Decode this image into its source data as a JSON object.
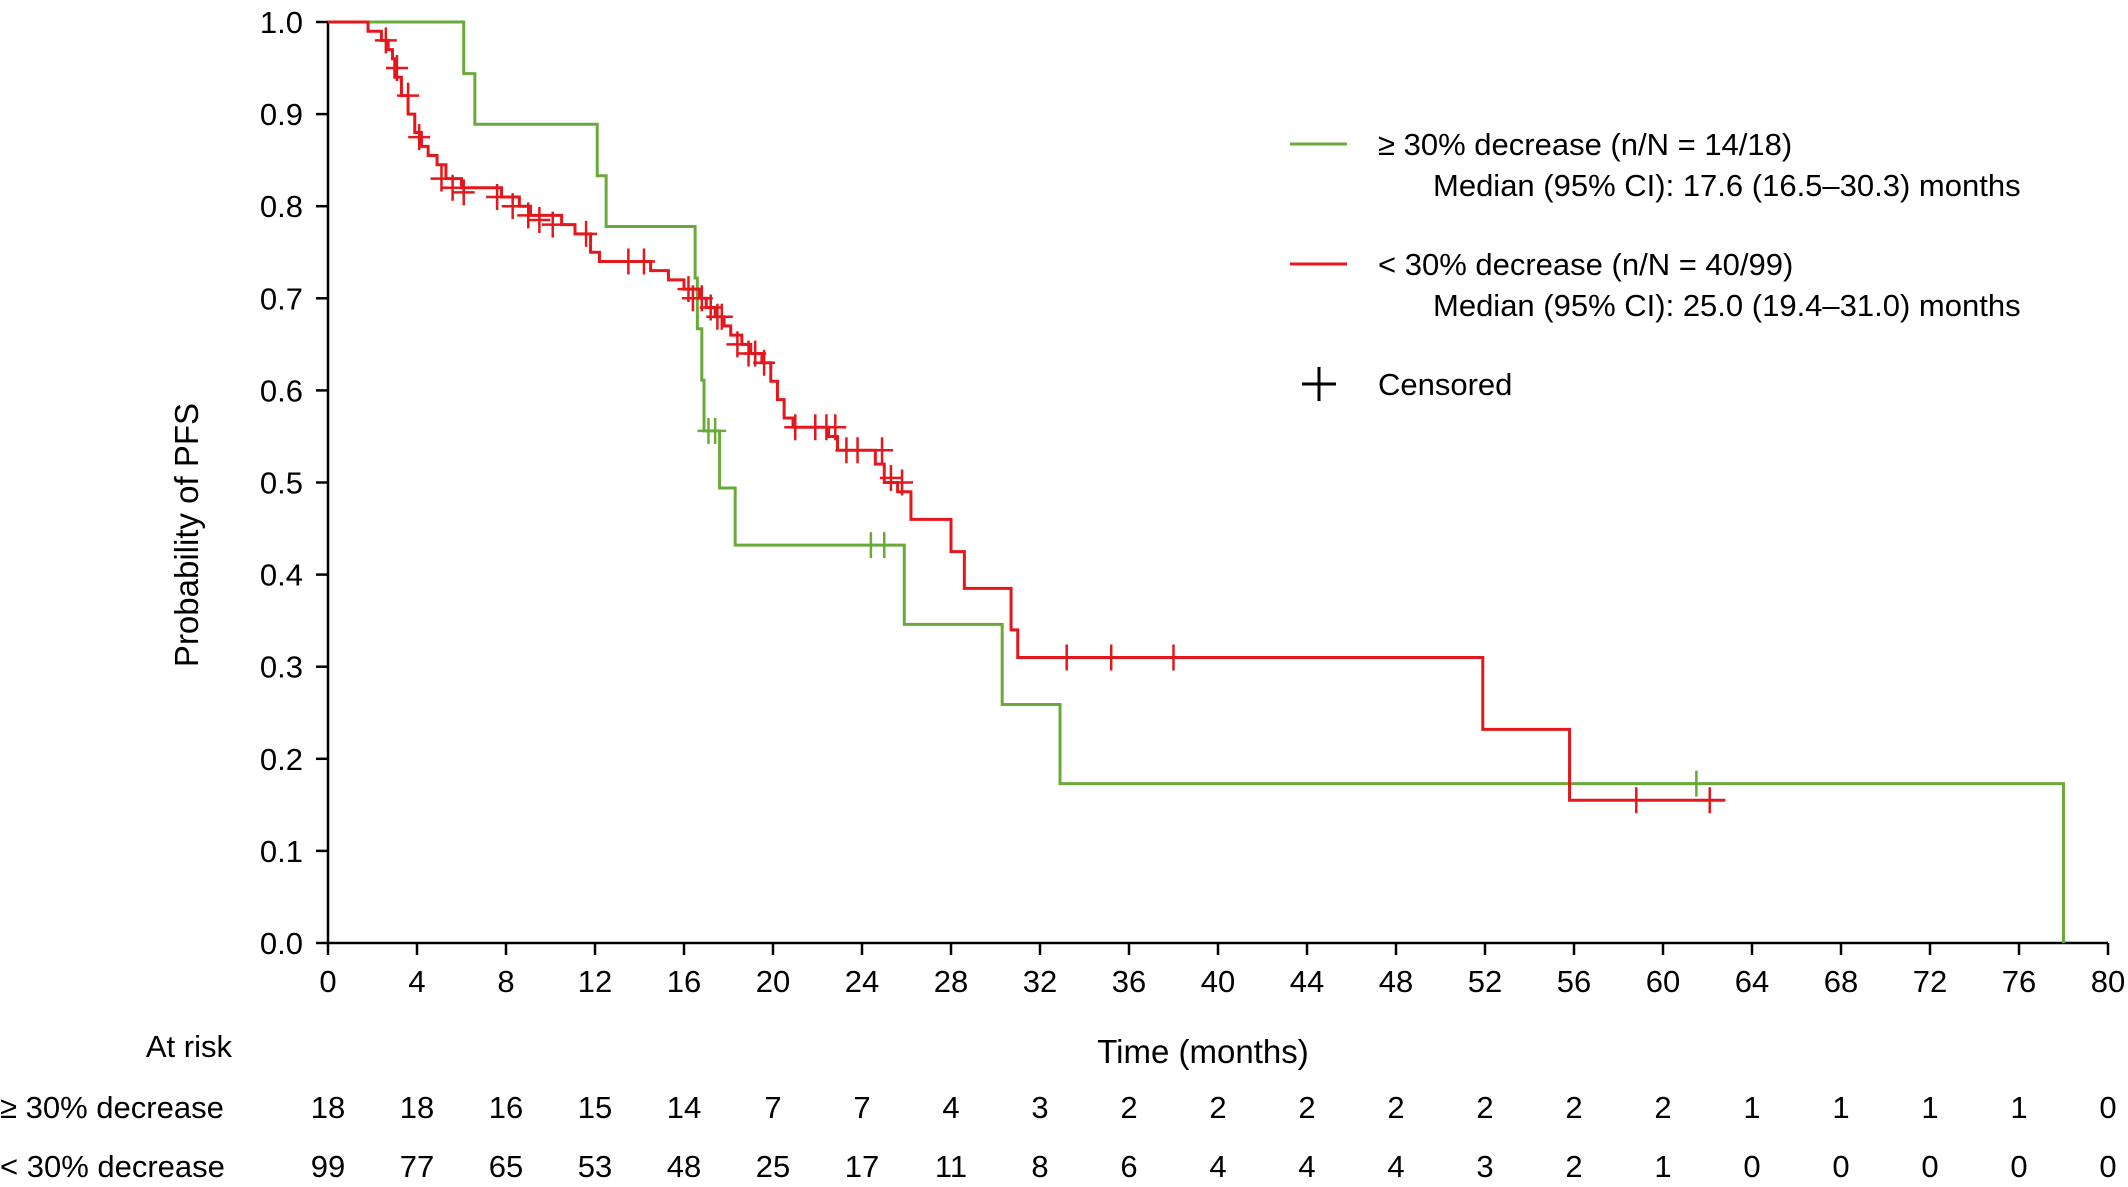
{
  "chart_data": {
    "type": "line",
    "xlabel": "Time (months)",
    "ylabel": "Probability of PFS",
    "xlim": [
      0,
      80
    ],
    "ylim": [
      0,
      1.0
    ],
    "x_ticks": [
      0,
      4,
      8,
      12,
      16,
      20,
      24,
      28,
      32,
      36,
      40,
      44,
      48,
      52,
      56,
      60,
      64,
      68,
      72,
      76,
      80
    ],
    "y_ticks": [
      "0.0",
      "0.1",
      "0.2",
      "0.3",
      "0.4",
      "0.5",
      "0.6",
      "0.7",
      "0.8",
      "0.9",
      "1.0"
    ],
    "grid": false,
    "legend_position": "top-right",
    "series": [
      {
        "name": "≥ 30% decrease (n/N = 14/18)",
        "median_text": "Median (95% CI): 17.6 (16.5–30.3) months",
        "color": "#6aaa3a",
        "steps": [
          [
            0,
            1.0
          ],
          [
            6.1,
            0.944
          ],
          [
            6.6,
            0.889
          ],
          [
            12.1,
            0.833
          ],
          [
            12.5,
            0.778
          ],
          [
            16.5,
            0.722
          ],
          [
            16.6,
            0.667
          ],
          [
            16.8,
            0.611
          ],
          [
            16.9,
            0.556
          ],
          [
            17.6,
            0.494
          ],
          [
            18.3,
            0.432
          ],
          [
            25.9,
            0.346
          ],
          [
            30.3,
            0.259
          ],
          [
            32.9,
            0.173
          ],
          [
            78.0,
            0.0
          ]
        ],
        "end_x": 78.0,
        "censored": [
          [
            17.1,
            0.556
          ],
          [
            17.4,
            0.556
          ],
          [
            24.4,
            0.432
          ],
          [
            25.0,
            0.432
          ],
          [
            61.5,
            0.173
          ]
        ]
      },
      {
        "name": "< 30% decrease (n/N = 40/99)",
        "median_text": "Median (95% CI): 25.0 (19.4–31.0) months",
        "color": "#e3171c",
        "steps": [
          [
            0,
            1.0
          ],
          [
            1.8,
            0.99
          ],
          [
            2.4,
            0.98
          ],
          [
            2.7,
            0.97
          ],
          [
            2.9,
            0.96
          ],
          [
            3.0,
            0.94
          ],
          [
            3.3,
            0.92
          ],
          [
            3.6,
            0.9
          ],
          [
            3.9,
            0.88
          ],
          [
            4.2,
            0.865
          ],
          [
            4.5,
            0.855
          ],
          [
            4.9,
            0.845
          ],
          [
            5.3,
            0.83
          ],
          [
            6.0,
            0.82
          ],
          [
            7.8,
            0.81
          ],
          [
            8.6,
            0.8
          ],
          [
            9.1,
            0.79
          ],
          [
            10.5,
            0.78
          ],
          [
            11.1,
            0.77
          ],
          [
            11.8,
            0.75
          ],
          [
            12.2,
            0.74
          ],
          [
            14.5,
            0.73
          ],
          [
            15.3,
            0.72
          ],
          [
            16.0,
            0.71
          ],
          [
            16.7,
            0.7
          ],
          [
            17.0,
            0.69
          ],
          [
            17.4,
            0.68
          ],
          [
            17.8,
            0.67
          ],
          [
            18.1,
            0.66
          ],
          [
            18.6,
            0.65
          ],
          [
            19.0,
            0.64
          ],
          [
            19.5,
            0.63
          ],
          [
            19.9,
            0.61
          ],
          [
            20.2,
            0.59
          ],
          [
            20.5,
            0.57
          ],
          [
            20.9,
            0.56
          ],
          [
            22.5,
            0.55
          ],
          [
            22.9,
            0.535
          ],
          [
            24.6,
            0.52
          ],
          [
            25.0,
            0.5
          ],
          [
            25.6,
            0.49
          ],
          [
            26.2,
            0.46
          ],
          [
            28.0,
            0.425
          ],
          [
            28.6,
            0.385
          ],
          [
            30.7,
            0.34
          ],
          [
            31.0,
            0.31
          ],
          [
            51.9,
            0.232
          ],
          [
            55.8,
            0.155
          ]
        ],
        "end_x": 62.8,
        "censored": [
          [
            2.6,
            0.98
          ],
          [
            3.1,
            0.95
          ],
          [
            3.6,
            0.92
          ],
          [
            4.1,
            0.875
          ],
          [
            5.1,
            0.83
          ],
          [
            5.6,
            0.82
          ],
          [
            6.1,
            0.815
          ],
          [
            7.6,
            0.81
          ],
          [
            8.3,
            0.8
          ],
          [
            9.0,
            0.79
          ],
          [
            9.5,
            0.785
          ],
          [
            10.1,
            0.78
          ],
          [
            11.6,
            0.77
          ],
          [
            13.5,
            0.74
          ],
          [
            14.2,
            0.74
          ],
          [
            16.2,
            0.71
          ],
          [
            16.4,
            0.7
          ],
          [
            16.8,
            0.7
          ],
          [
            17.2,
            0.69
          ],
          [
            17.5,
            0.68
          ],
          [
            17.7,
            0.68
          ],
          [
            18.4,
            0.65
          ],
          [
            18.9,
            0.64
          ],
          [
            19.2,
            0.64
          ],
          [
            19.6,
            0.63
          ],
          [
            21.0,
            0.56
          ],
          [
            21.9,
            0.56
          ],
          [
            22.4,
            0.56
          ],
          [
            22.8,
            0.56
          ],
          [
            23.3,
            0.535
          ],
          [
            23.8,
            0.535
          ],
          [
            24.9,
            0.535
          ],
          [
            25.3,
            0.505
          ],
          [
            25.8,
            0.5
          ],
          [
            33.2,
            0.31
          ],
          [
            35.2,
            0.31
          ],
          [
            38.0,
            0.31
          ],
          [
            58.8,
            0.155
          ],
          [
            62.1,
            0.155
          ]
        ]
      }
    ],
    "legend_censored_label": "Censored"
  },
  "at_risk": {
    "title": "At risk",
    "times": [
      0,
      4,
      8,
      12,
      16,
      20,
      24,
      28,
      32,
      36,
      40,
      44,
      48,
      52,
      56,
      60,
      64,
      68,
      72,
      76,
      80
    ],
    "rows": [
      {
        "label": "≥ 30% decrease",
        "counts": [
          18,
          18,
          16,
          15,
          14,
          7,
          7,
          4,
          3,
          2,
          2,
          2,
          2,
          2,
          2,
          2,
          1,
          1,
          1,
          1,
          0
        ]
      },
      {
        "label": "< 30% decrease",
        "counts": [
          99,
          77,
          65,
          53,
          48,
          25,
          17,
          11,
          8,
          6,
          4,
          4,
          4,
          3,
          2,
          1,
          0,
          0,
          0,
          0,
          0
        ]
      }
    ]
  }
}
